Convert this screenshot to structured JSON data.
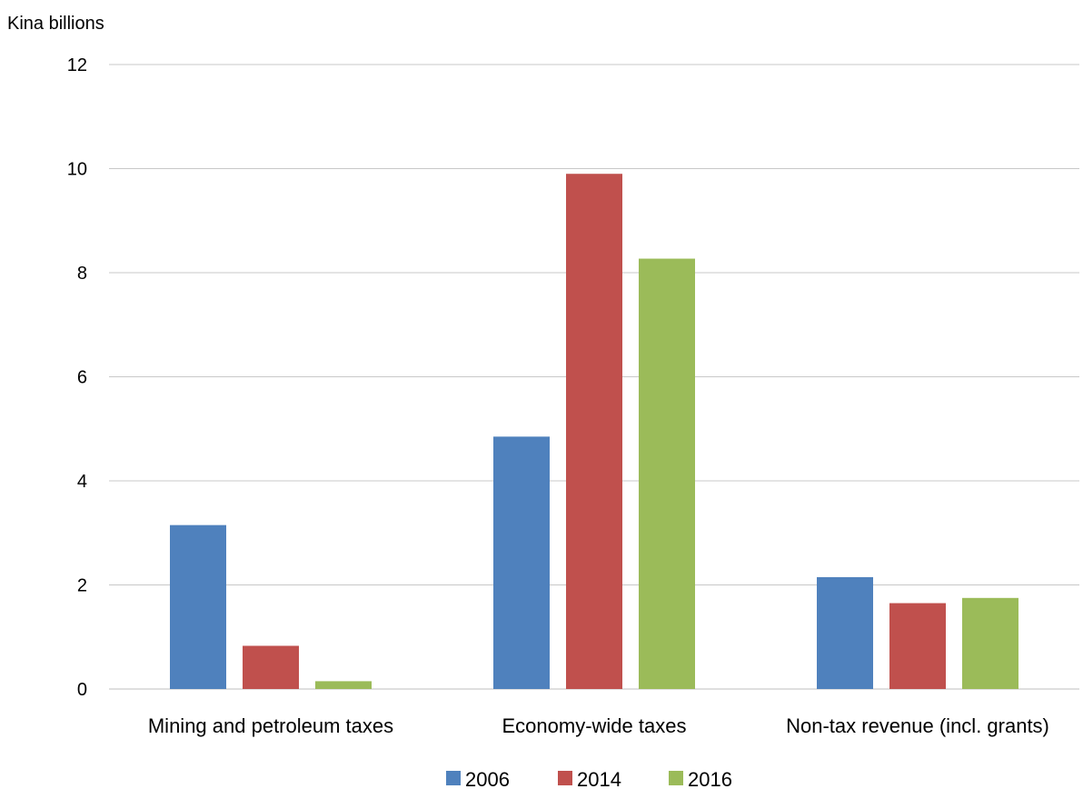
{
  "chart_data": {
    "type": "bar",
    "ylabel": "Kina billions",
    "xlabel": "",
    "title": "",
    "ylim": [
      0,
      12
    ],
    "yticks": [
      0,
      2,
      4,
      6,
      8,
      10,
      12
    ],
    "grid": true,
    "legend_position": "bottom",
    "categories": [
      "Mining and petroleum taxes",
      "Economy-wide taxes",
      "Non-tax revenue (incl. grants)"
    ],
    "series": [
      {
        "name": "2006",
        "color": "#4f81bd",
        "values": [
          3.15,
          4.85,
          2.15
        ]
      },
      {
        "name": "2014",
        "color": "#c0504d",
        "values": [
          0.83,
          9.9,
          1.65
        ]
      },
      {
        "name": "2016",
        "color": "#9bbb59",
        "values": [
          0.15,
          8.27,
          1.75
        ]
      }
    ]
  }
}
